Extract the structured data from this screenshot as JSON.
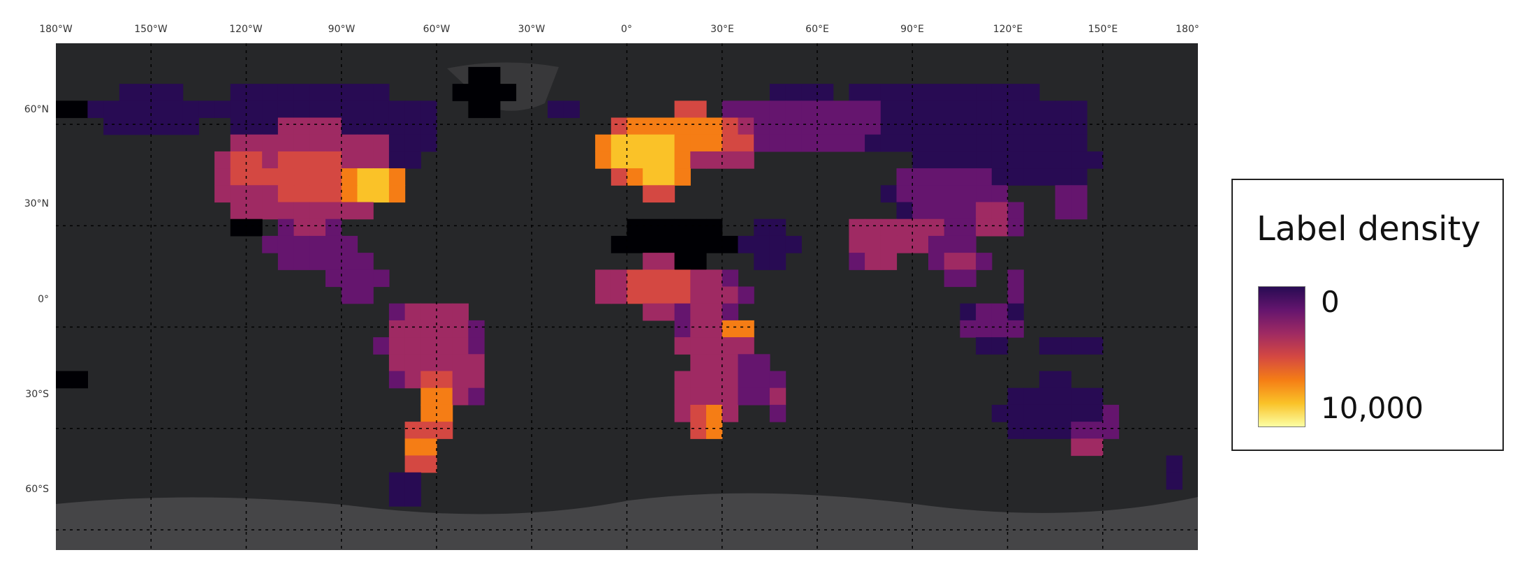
{
  "map": {
    "colors": {
      "ocean": "#262729",
      "gridline": "#000000",
      "antarctica": "#4a4a4c",
      "ramp": [
        "#fcffa4",
        "#fac228",
        "#f57d15",
        "#d44842",
        "#9f2a63",
        "#65156e",
        "#280b53",
        "#000004"
      ]
    },
    "longitude_ticks": [
      "180°W",
      "150°W",
      "120°W",
      "90°W",
      "60°W",
      "30°W",
      "0°",
      "30°E",
      "60°E",
      "90°E",
      "120°E",
      "150°E",
      "180°"
    ],
    "latitude_ticks": [
      "60°N",
      "30°N",
      "0°",
      "30°S",
      "60°S"
    ]
  },
  "legend": {
    "title": "Label density",
    "min_label": "0",
    "max_label": "10,000"
  }
}
